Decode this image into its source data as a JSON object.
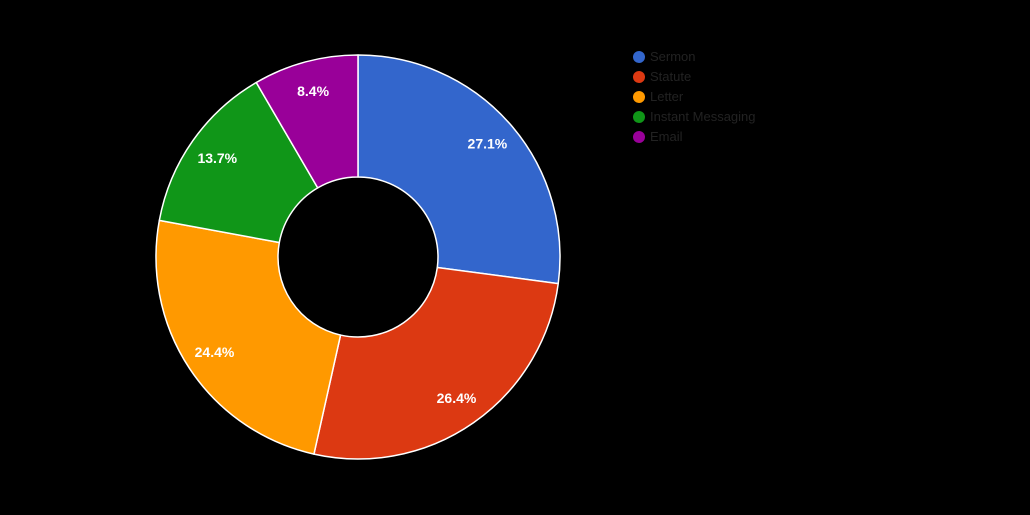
{
  "page": {
    "background_color": "#000000"
  },
  "chart_data": {
    "type": "pie",
    "donut": true,
    "donut_hole_ratio": 0.4,
    "direction": "clockwise",
    "start_angle_deg": 0,
    "legend_position": "right",
    "slice_border_color": "#ffffff",
    "slice_label_color": "#ffffff",
    "legend_text_color": "#222222",
    "categories": [
      "Sermon",
      "Statute",
      "Letter",
      "Instant Messaging",
      "Email"
    ],
    "values": [
      27.1,
      26.4,
      24.4,
      13.7,
      8.4
    ],
    "slices": [
      {
        "label": "Sermon",
        "value": 27.1,
        "display": "27.1%",
        "color": "#3366cc"
      },
      {
        "label": "Statute",
        "value": 26.4,
        "display": "26.4%",
        "color": "#dc3912"
      },
      {
        "label": "Letter",
        "value": 24.4,
        "display": "24.4%",
        "color": "#ff9900"
      },
      {
        "label": "Instant Messaging",
        "value": 13.7,
        "display": "13.7%",
        "color": "#109618"
      },
      {
        "label": "Email",
        "value": 8.4,
        "display": "8.4%",
        "color": "#990099"
      }
    ]
  }
}
